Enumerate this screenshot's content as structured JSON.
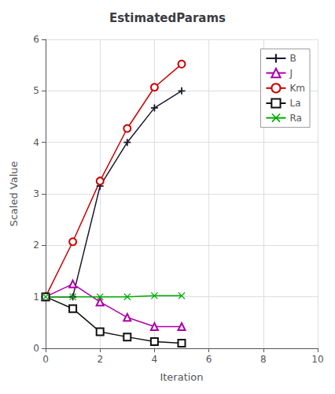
{
  "chart_data": {
    "type": "line",
    "title": "EstimatedParams",
    "xlabel": "Iteration",
    "ylabel": "Scaled Value",
    "xlim": [
      0,
      10
    ],
    "ylim": [
      0,
      6
    ],
    "xticks": [
      0,
      2,
      4,
      6,
      8,
      10
    ],
    "yticks": [
      0,
      1,
      2,
      3,
      4,
      5,
      6
    ],
    "x": [
      0,
      1,
      2,
      3,
      4,
      5
    ],
    "series": [
      {
        "name": "B",
        "color": "#1a1a2e",
        "marker": "plus",
        "values": [
          1.0,
          1.0,
          3.15,
          4.0,
          4.67,
          5.0
        ]
      },
      {
        "name": "J",
        "color": "#AA00AA",
        "marker": "triangle_open",
        "values": [
          1.0,
          1.25,
          0.9,
          0.6,
          0.42,
          0.42
        ]
      },
      {
        "name": "Km",
        "color": "#CC0000",
        "marker": "circle_open",
        "values": [
          1.0,
          2.07,
          3.25,
          4.27,
          5.07,
          5.52
        ]
      },
      {
        "name": "La",
        "color": "#111111",
        "marker": "square_open",
        "values": [
          1.0,
          0.77,
          0.32,
          0.22,
          0.13,
          0.1
        ]
      },
      {
        "name": "Ra",
        "color": "#00AA00",
        "marker": "x",
        "values": [
          1.0,
          1.0,
          1.0,
          1.0,
          1.02,
          1.02
        ]
      }
    ],
    "legend": "upper right",
    "grid": true
  }
}
